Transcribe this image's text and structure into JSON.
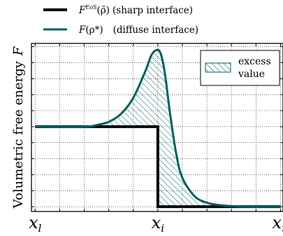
{
  "chart_data": {
    "type": "line",
    "ylabel_text": "Volumetric free energy",
    "ylabel_symbol": "F",
    "xticks": [
      {
        "x": 0,
        "base": "x",
        "sub": "l"
      },
      {
        "x": 1,
        "base": "x",
        "sub": "i"
      },
      {
        "x": 2,
        "base": "x",
        "sub": "r"
      }
    ],
    "xlim": [
      -0.03,
      2.02
    ],
    "ylim": [
      -0.03,
      1.02
    ],
    "grid": true,
    "legend_top": {
      "placement": "above-plot",
      "entries": [
        {
          "symbol_base": "F",
          "symbol_sup": "EoS",
          "arg": "(ρ̄)",
          "desc": "(sharp interface)",
          "color": "#000000"
        },
        {
          "symbol_base": "F",
          "symbol_sup": "",
          "arg": "(ρ*)",
          "desc": "(diffuse interface)",
          "color": "#006060"
        }
      ]
    },
    "legend_inset": {
      "placement": "top-right",
      "lines": [
        "excess",
        "value"
      ]
    },
    "series": [
      {
        "name": "sharp interface",
        "color": "#000000",
        "x": [
          0,
          1,
          1,
          2
        ],
        "y": [
          0.5,
          0.5,
          0,
          0
        ]
      },
      {
        "name": "diffuse interface",
        "color": "#006060",
        "x": [
          0,
          0.4,
          0.5,
          0.6,
          0.7,
          0.8,
          0.9,
          0.95,
          1.0,
          1.03,
          1.06,
          1.1,
          1.15,
          1.2,
          1.3,
          1.4,
          1.5,
          1.6,
          1.7,
          2.0
        ],
        "y": [
          0.5,
          0.5,
          0.51,
          0.53,
          0.58,
          0.68,
          0.85,
          0.95,
          0.98,
          0.94,
          0.82,
          0.58,
          0.33,
          0.18,
          0.065,
          0.025,
          0.01,
          0.004,
          0.0,
          0.0
        ]
      }
    ]
  }
}
